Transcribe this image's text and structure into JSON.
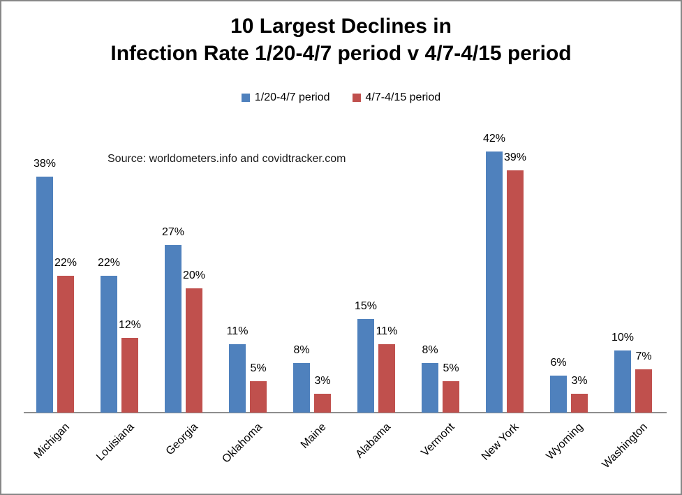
{
  "chart": {
    "title_line1": "10 Largest Declines in",
    "title_line2": "Infection Rate 1/20-4/7 period v 4/7-4/15 period",
    "source_note": "Source: worldometers.info and covidtracker.com"
  },
  "chart_data": {
    "type": "bar",
    "title": "10 Largest Declines in Infection Rate 1/20-4/7 period v 4/7-4/15 period",
    "annotation": "Source: worldometers.info and covidtracker.com",
    "categories": [
      "Michigan",
      "Louisiana",
      "Georgia",
      "Oklahoma",
      "Maine",
      "Alabama",
      "Vermont",
      "New York",
      "Wyoming",
      "Washington"
    ],
    "series": [
      {
        "name": "1/20-4/7 period",
        "color": "#4F81BD",
        "values": [
          38,
          22,
          27,
          11,
          8,
          15,
          8,
          42,
          6,
          10
        ]
      },
      {
        "name": "4/7-4/15 period",
        "color": "#C0504D",
        "values": [
          22,
          12,
          20,
          5,
          3,
          11,
          5,
          39,
          3,
          7
        ]
      }
    ],
    "value_label_format": "{v}%",
    "ylim": [
      0,
      45
    ],
    "xlabel": "",
    "ylabel": "",
    "grid": false,
    "legend_position": "top",
    "x_label_rotation_deg": -45
  }
}
